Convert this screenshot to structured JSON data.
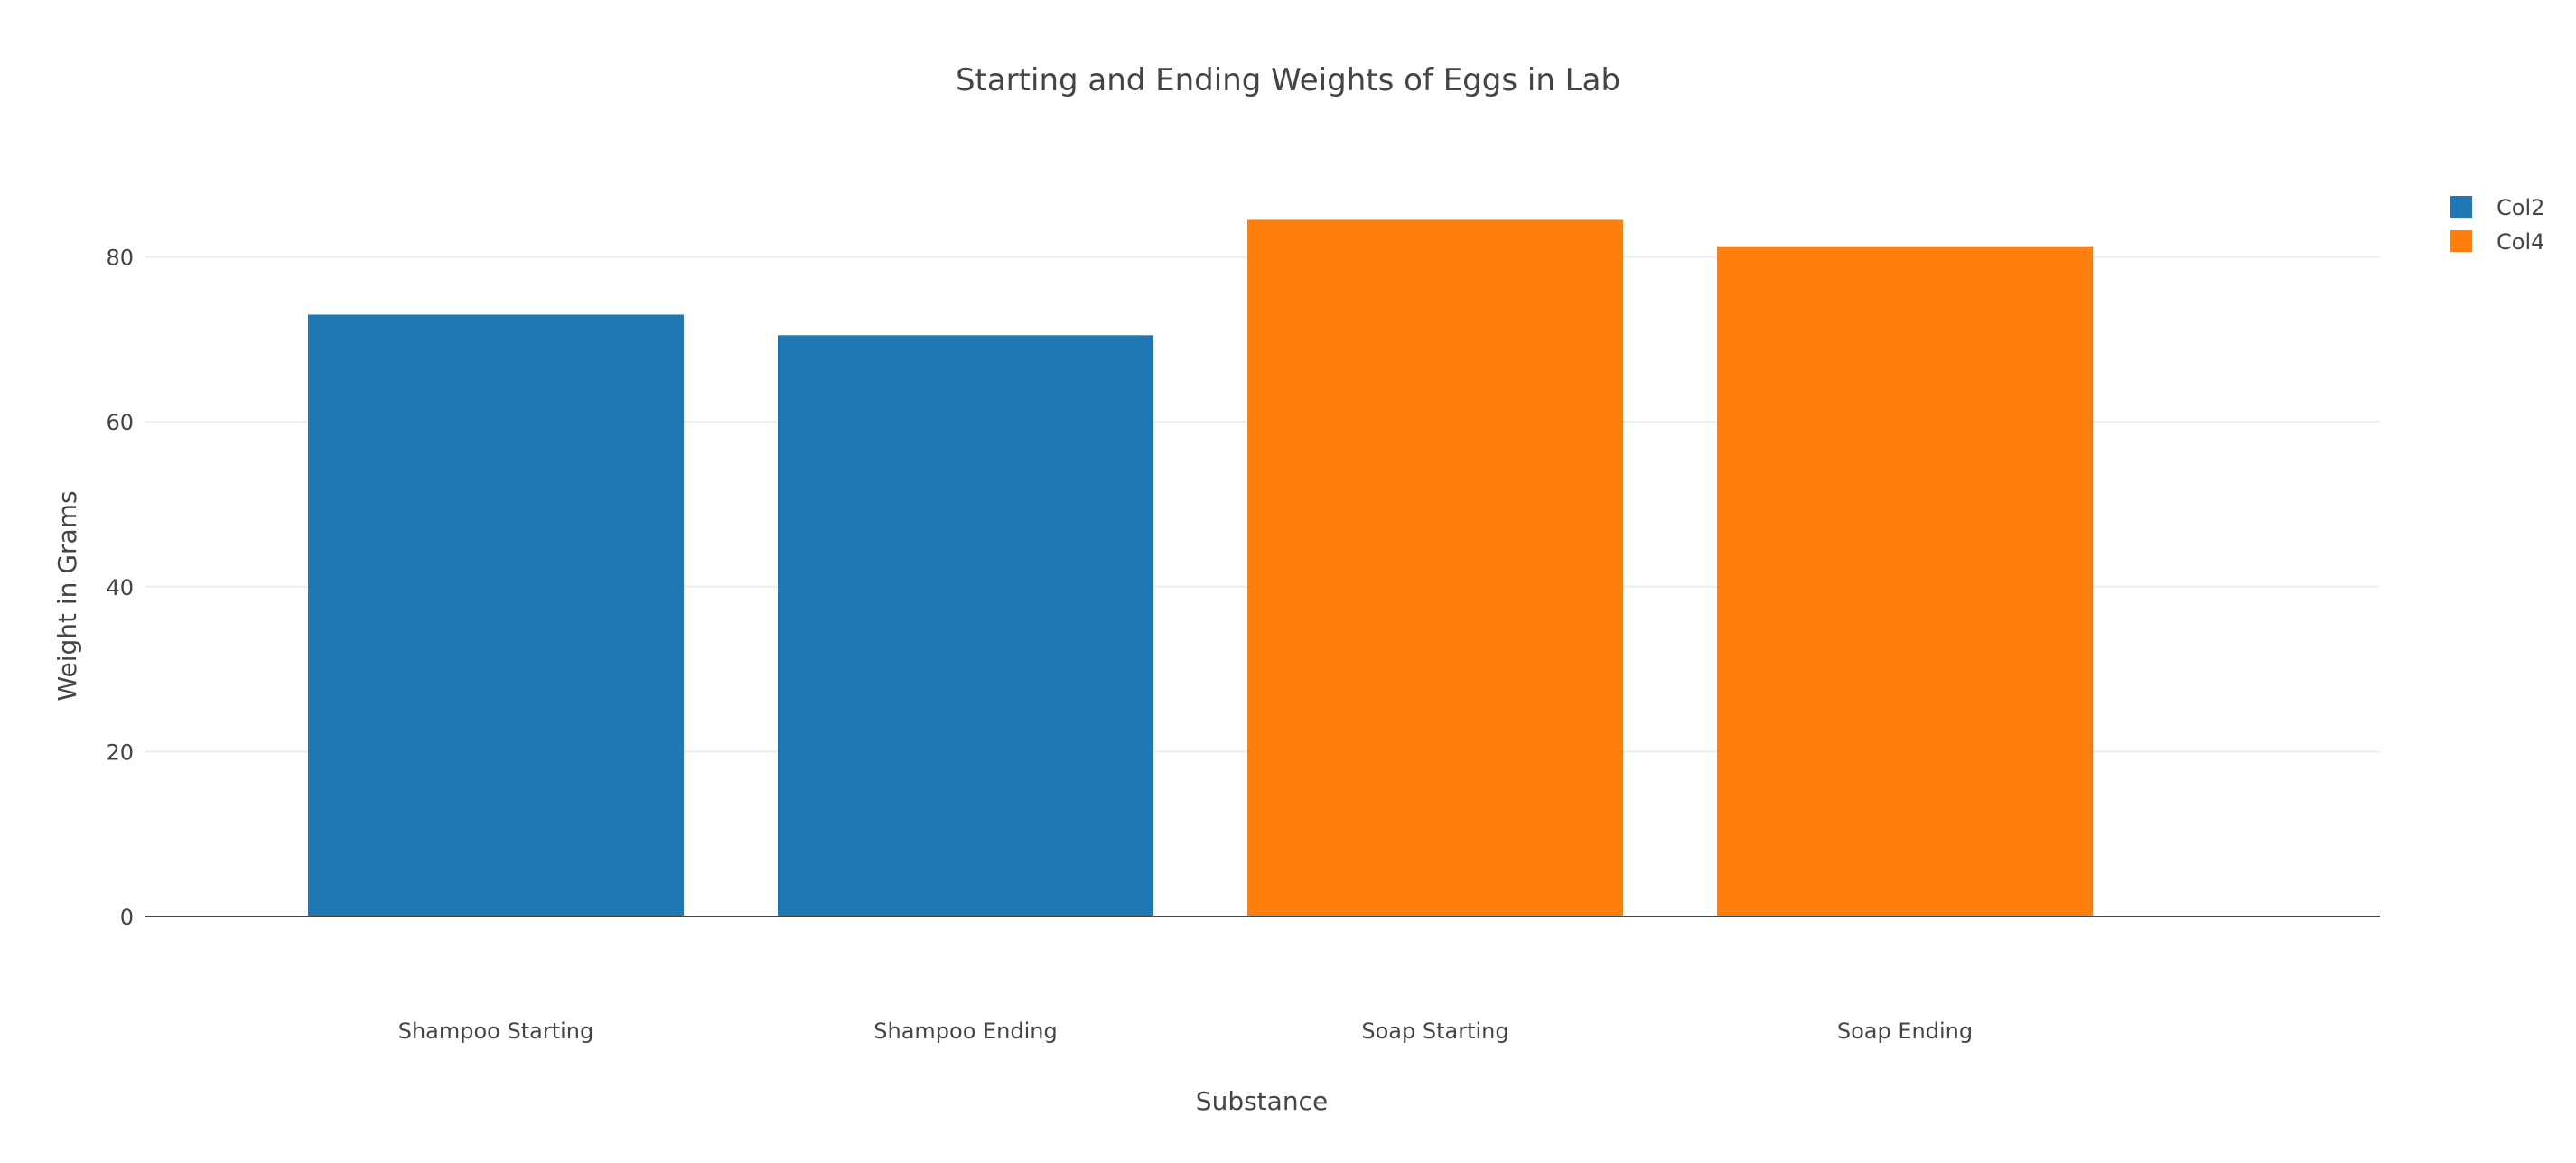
{
  "chart_data": {
    "type": "bar",
    "title": "Starting and Ending Weights of Eggs in Lab",
    "xlabel": "Substance",
    "ylabel": "Weight in Grams",
    "categories": [
      "Shampoo Starting",
      "Shampoo Ending",
      "Soap Starting",
      "Soap Ending"
    ],
    "ylim": [
      0,
      92
    ],
    "yticks": [
      0,
      20,
      40,
      60,
      80
    ],
    "grid": true,
    "legend_position": "top-right",
    "series": [
      {
        "name": "Col2",
        "color": "#1f77b4",
        "values": [
          73,
          70.5,
          null,
          null
        ]
      },
      {
        "name": "Col4",
        "color": "#ff7f0e",
        "values": [
          null,
          null,
          84.5,
          81.3
        ]
      }
    ]
  }
}
